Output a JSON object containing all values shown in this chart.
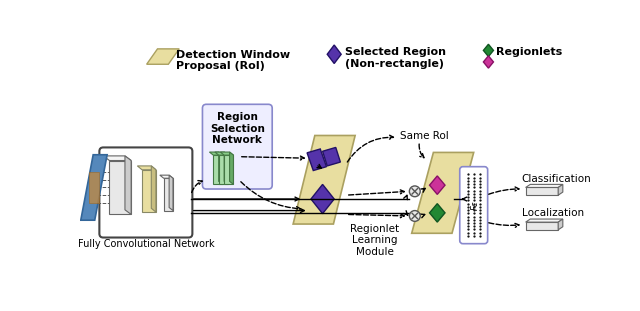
{
  "fig_width": 6.4,
  "fig_height": 3.11,
  "dpi": 100,
  "bg_color": "#ffffff",
  "colors": {
    "roi_yellow": "#e8dea0",
    "roi_yellow_edge": "#aaa060",
    "roi_yellow_dark": "#c8be80",
    "purple_dark": "#5533aa",
    "green": "#228833",
    "pink": "#cc3399",
    "blue_img": "#5588bb",
    "blue_img_dark": "#336699",
    "gray_box": "#e8e8e8",
    "gray_box_dark": "#c8c8c8",
    "white_layer": "#f5f5f5",
    "gray_layer": "#d8d8d8",
    "gray_layer2": "#c0c0c0",
    "yellow_layer": "#e8dea0",
    "green_layer_light": "#aaddaa",
    "green_layer_mid": "#88cc88",
    "green_layer_dark": "#66aa66",
    "rsn_bg": "#eeeeff",
    "rsn_border": "#8888cc",
    "fc_bg": "#ffffff",
    "fc_border": "#8888cc",
    "multiply_bg": "#e8e8e8",
    "clf_top": "#e8e8e8",
    "clf_side": "#cccccc",
    "clf_front": "#f0f0f0"
  },
  "texts": {
    "fcn_label": "Fully Convolutional Network",
    "rsn_label": "Region\nSelection\nNetwork",
    "same_roi": "Same RoI",
    "regionlet_module": "Regionlet\nLearning\nModule",
    "classification": "Classification",
    "localization": "Localization",
    "legend_roi": "Detection Window\nProposal (RoI)",
    "legend_selected": "Selected Region\n(Non-rectangle)",
    "legend_regionlets": "Regionlets"
  },
  "font_sizes": {
    "legend": 8,
    "label": 7.5,
    "fcn": 7,
    "small": 6.5
  }
}
